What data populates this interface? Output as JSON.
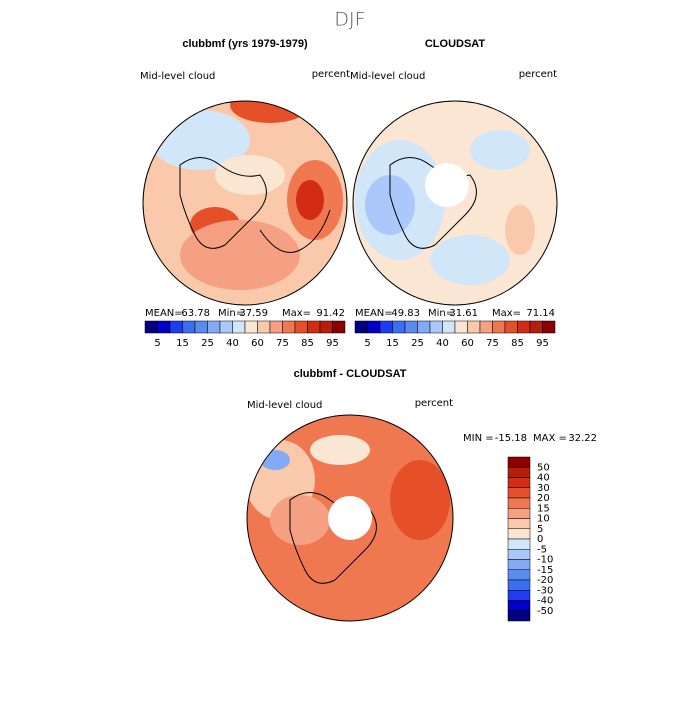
{
  "title": "DJF",
  "panels": [
    {
      "title": "clubbmf (yrs 1979-1979)",
      "left_label": "Mid-level cloud",
      "right_label": "percent",
      "stats": [
        {
          "label": "MEAN=",
          "value": 63.78
        },
        {
          "label": "Min=",
          "value": 37.59
        },
        {
          "label": "Max=",
          "value": 91.42
        }
      ]
    },
    {
      "title": "CLOUDSAT",
      "left_label": "Mid-level cloud",
      "right_label": "percent",
      "stats": [
        {
          "label": "MEAN=",
          "value": 49.83
        },
        {
          "label": "Min=",
          "value": 31.61
        },
        {
          "label": "Max=",
          "value": 71.14
        }
      ]
    },
    {
      "title": "clubbmf - CLOUDSAT",
      "left_label": "Mid-level cloud",
      "right_label": "percent",
      "stats": [
        {
          "label": "MIN =",
          "value": -15.18
        },
        {
          "label": "MAX =",
          "value": 32.22
        }
      ]
    }
  ],
  "colorbar": {
    "labels": [
      5,
      15,
      25,
      40,
      60,
      75,
      85,
      95
    ],
    "colors": [
      "#000080",
      "#0000c8",
      "#1e3cf0",
      "#3c6ef0",
      "#5a8cf0",
      "#82aaf5",
      "#aac8fa",
      "#d2e6fa",
      "#fae6d2",
      "#fac8aa",
      "#f5a082",
      "#f07850",
      "#e65028",
      "#d22d14",
      "#b41e0a",
      "#8c0000"
    ]
  },
  "diff_colorbar": {
    "labels": [
      50,
      40,
      30,
      20,
      15,
      10,
      5,
      0,
      -5,
      -10,
      -15,
      -20,
      -30,
      -40,
      -50
    ],
    "colors": [
      "#8c0000",
      "#b41e0a",
      "#d22d14",
      "#e65028",
      "#f07850",
      "#f5a082",
      "#fac8aa",
      "#fae6d2",
      "#d2e6fa",
      "#aac8fa",
      "#82aaf5",
      "#5a8cf0",
      "#3c6ef0",
      "#1e3cf0",
      "#0000c8",
      "#000080"
    ]
  }
}
